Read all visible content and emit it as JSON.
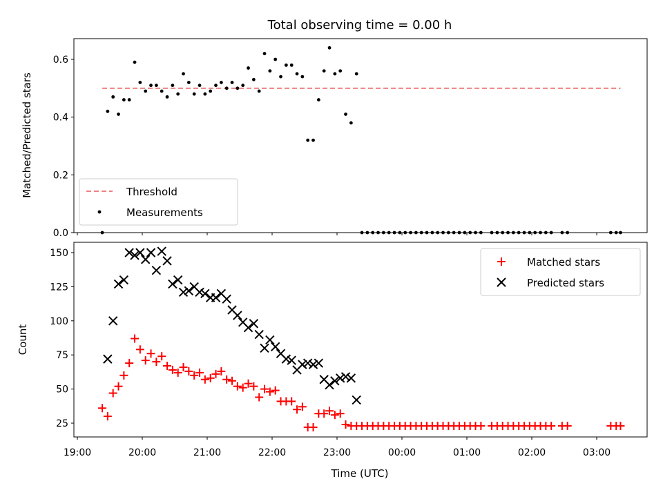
{
  "chart_data": [
    {
      "type": "scatter",
      "title": "Total observing time = 0.00 h",
      "xlabel": "",
      "ylabel": "Matched/Predicted stars",
      "ylim": [
        0,
        0.675
      ],
      "yticks": [
        "0.0",
        "0.2",
        "0.4",
        "0.6"
      ],
      "legend_position": "lower-left",
      "colors": {
        "threshold": "#f08080",
        "measurements": "#000000"
      },
      "threshold": {
        "name": "Threshold",
        "value": 0.5,
        "x_start": "19:23",
        "x_end": "03:22"
      },
      "series": [
        {
          "name": "Measurements",
          "x": [
            "19:23",
            "19:28",
            "19:33",
            "19:38",
            "19:43",
            "19:48",
            "19:53",
            "19:58",
            "20:03",
            "20:08",
            "20:13",
            "20:18",
            "20:23",
            "20:28",
            "20:33",
            "20:38",
            "20:43",
            "20:48",
            "20:53",
            "20:58",
            "21:03",
            "21:08",
            "21:13",
            "21:18",
            "21:23",
            "21:28",
            "21:33",
            "21:38",
            "21:43",
            "21:48",
            "21:53",
            "21:58",
            "22:03",
            "22:08",
            "22:13",
            "22:18",
            "22:23",
            "22:28",
            "22:33",
            "22:38",
            "22:43",
            "22:48",
            "22:53",
            "22:58",
            "23:03",
            "23:08",
            "23:13",
            "23:18",
            "23:23",
            "23:28",
            "23:33",
            "23:38",
            "23:43",
            "23:48",
            "23:53",
            "23:58",
            "00:03",
            "00:08",
            "00:13",
            "00:18",
            "00:23",
            "00:28",
            "00:33",
            "00:38",
            "00:43",
            "00:48",
            "00:53",
            "00:58",
            "01:03",
            "01:08",
            "01:13",
            "01:23",
            "01:28",
            "01:33",
            "01:38",
            "01:43",
            "01:48",
            "01:53",
            "01:58",
            "02:03",
            "02:08",
            "02:13",
            "02:18",
            "02:28",
            "02:33",
            "03:13",
            "03:18",
            "03:22"
          ],
          "y": [
            0.0,
            0.42,
            0.47,
            0.41,
            0.46,
            0.46,
            0.59,
            0.52,
            0.49,
            0.51,
            0.51,
            0.49,
            0.47,
            0.51,
            0.48,
            0.55,
            0.52,
            0.48,
            0.51,
            0.48,
            0.49,
            0.51,
            0.52,
            0.5,
            0.52,
            0.5,
            0.51,
            0.57,
            0.53,
            0.49,
            0.62,
            0.56,
            0.6,
            0.54,
            0.58,
            0.58,
            0.55,
            0.54,
            0.32,
            0.32,
            0.46,
            0.56,
            0.64,
            0.55,
            0.56,
            0.41,
            0.38,
            0.55,
            0.0,
            0.0,
            0.0,
            0.0,
            0.0,
            0.0,
            0.0,
            0.0,
            0.0,
            0.0,
            0.0,
            0.0,
            0.0,
            0.0,
            0.0,
            0.0,
            0.0,
            0.0,
            0.0,
            0.0,
            0.0,
            0.0,
            0.0,
            0.0,
            0.0,
            0.0,
            0.0,
            0.0,
            0.0,
            0.0,
            0.0,
            0.0,
            0.0,
            0.0,
            0.0,
            0.0,
            0.0,
            0.0,
            0.0,
            0.0
          ]
        }
      ]
    },
    {
      "type": "scatter",
      "title": "",
      "xlabel": "Time (UTC)",
      "ylabel": "Count",
      "ylim": [
        15,
        160
      ],
      "yticks": [
        "25",
        "50",
        "75",
        "100",
        "125",
        "150"
      ],
      "xticks": [
        "19:00",
        "20:00",
        "21:00",
        "22:00",
        "23:00",
        "00:00",
        "01:00",
        "02:00",
        "03:00"
      ],
      "legend_position": "upper-right",
      "colors": {
        "matched": "#ff0000",
        "predicted": "#000000"
      },
      "series": [
        {
          "name": "Matched stars",
          "marker": "+",
          "x": [
            "19:23",
            "19:28",
            "19:33",
            "19:38",
            "19:43",
            "19:48",
            "19:53",
            "19:58",
            "20:03",
            "20:08",
            "20:13",
            "20:18",
            "20:23",
            "20:28",
            "20:33",
            "20:38",
            "20:43",
            "20:48",
            "20:53",
            "20:58",
            "21:03",
            "21:08",
            "21:13",
            "21:18",
            "21:23",
            "21:28",
            "21:33",
            "21:38",
            "21:43",
            "21:48",
            "21:53",
            "21:58",
            "22:03",
            "22:08",
            "22:13",
            "22:18",
            "22:23",
            "22:28",
            "22:33",
            "22:38",
            "22:43",
            "22:48",
            "22:53",
            "22:58",
            "23:03",
            "23:08",
            "23:13",
            "23:18",
            "23:23",
            "23:28",
            "23:33",
            "23:38",
            "23:43",
            "23:48",
            "23:53",
            "23:58",
            "00:03",
            "00:08",
            "00:13",
            "00:18",
            "00:23",
            "00:28",
            "00:33",
            "00:38",
            "00:43",
            "00:48",
            "00:53",
            "00:58",
            "01:03",
            "01:08",
            "01:13",
            "01:23",
            "01:28",
            "01:33",
            "01:38",
            "01:43",
            "01:48",
            "01:53",
            "01:58",
            "02:03",
            "02:08",
            "02:13",
            "02:18",
            "02:28",
            "02:33",
            "03:13",
            "03:18",
            "03:22"
          ],
          "y": [
            36,
            30,
            47,
            52,
            60,
            69,
            87,
            79,
            71,
            76,
            70,
            74,
            67,
            64,
            62,
            66,
            63,
            60,
            62,
            57,
            58,
            61,
            63,
            57,
            56,
            52,
            51,
            54,
            52,
            44,
            50,
            48,
            49,
            41,
            41,
            41,
            35,
            37,
            22,
            22,
            32,
            32,
            34,
            31,
            32,
            24,
            23,
            23,
            23,
            23,
            23,
            23,
            23,
            23,
            23,
            23,
            23,
            23,
            23,
            23,
            23,
            23,
            23,
            23,
            23,
            23,
            23,
            23,
            23,
            23,
            23,
            23,
            23,
            23,
            23,
            23,
            23,
            23,
            23,
            23,
            23,
            23,
            23,
            23,
            23,
            23,
            23,
            23
          ]
        },
        {
          "name": "Predicted stars",
          "marker": "x",
          "x": [
            "19:28",
            "19:33",
            "19:38",
            "19:43",
            "19:48",
            "19:53",
            "19:58",
            "20:03",
            "20:08",
            "20:13",
            "20:18",
            "20:23",
            "20:28",
            "20:33",
            "20:38",
            "20:43",
            "20:48",
            "20:53",
            "20:58",
            "21:03",
            "21:08",
            "21:13",
            "21:18",
            "21:23",
            "21:28",
            "21:33",
            "21:38",
            "21:43",
            "21:48",
            "21:53",
            "21:58",
            "22:03",
            "22:08",
            "22:13",
            "22:18",
            "22:23",
            "22:28",
            "22:33",
            "22:38",
            "22:43",
            "22:48",
            "22:53",
            "22:58",
            "23:03",
            "23:08",
            "23:13",
            "23:18"
          ],
          "y": [
            72,
            100,
            127,
            130,
            150,
            148,
            150,
            145,
            150,
            137,
            151,
            144,
            127,
            130,
            121,
            122,
            125,
            121,
            120,
            117,
            117,
            120,
            116,
            108,
            104,
            99,
            95,
            98,
            90,
            80,
            86,
            81,
            76,
            72,
            71,
            64,
            68,
            69,
            68,
            69,
            57,
            53,
            56,
            58,
            59,
            58,
            42
          ]
        }
      ]
    }
  ]
}
